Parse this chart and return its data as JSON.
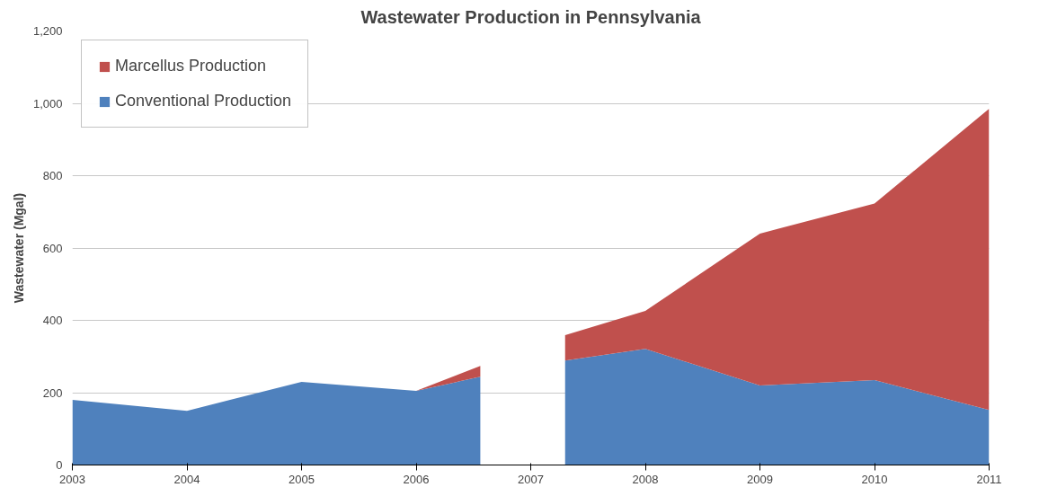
{
  "chart_data": {
    "type": "area",
    "stacked": true,
    "title": "Wastewater Production in Pennsylvania",
    "ylabel": "Wastewater (Mgal)",
    "x": [
      2003,
      2004,
      2005,
      2006,
      2006.56,
      2007,
      2007.3,
      2008,
      2009,
      2010,
      2011
    ],
    "series": [
      {
        "name": "Conventional Production",
        "color": "#4f81bd",
        "values": [
          180,
          150,
          230,
          205,
          244,
          null,
          289,
          321,
          220,
          235,
          152
        ]
      },
      {
        "name": "Marcellus Production",
        "color": "#c0504d",
        "values": [
          0,
          0,
          0,
          0,
          30,
          null,
          70,
          105,
          420,
          488,
          833
        ]
      }
    ],
    "xlim": [
      2003,
      2011
    ],
    "xticks": [
      2003,
      2004,
      2005,
      2006,
      2007,
      2008,
      2009,
      2010,
      2011
    ],
    "ylim": [
      0,
      1200
    ],
    "yticks": [
      0,
      200,
      400,
      600,
      800,
      {
        "value": 1000,
        "label": "1,000"
      },
      {
        "value": 1200,
        "label": "1,200"
      }
    ],
    "grid": "y",
    "legend": "top left"
  }
}
